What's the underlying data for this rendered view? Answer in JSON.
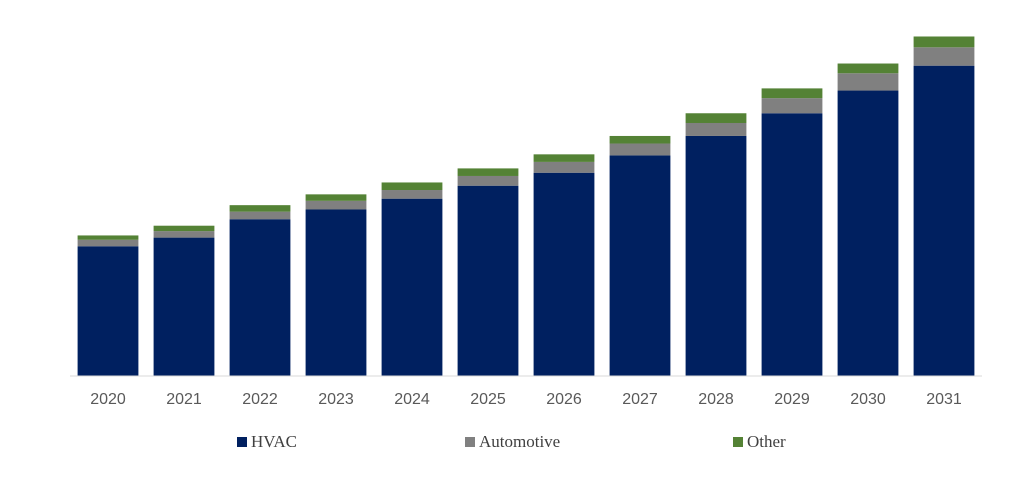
{
  "chart_data": {
    "type": "bar",
    "stacked": true,
    "categories": [
      "2020",
      "2021",
      "2022",
      "2023",
      "2024",
      "2025",
      "2026",
      "2027",
      "2028",
      "2029",
      "2030",
      "2031"
    ],
    "series": [
      {
        "name": "HVAC",
        "color": "#002060",
        "values": [
          120,
          128,
          145,
          154,
          164,
          176,
          188,
          204,
          222,
          243,
          264,
          287
        ]
      },
      {
        "name": "Automotive",
        "color": "#808080",
        "values": [
          6,
          6,
          7,
          8,
          8,
          9,
          10,
          11,
          12,
          14,
          16,
          17
        ]
      },
      {
        "name": "Other",
        "color": "#548235",
        "values": [
          4,
          5,
          6,
          6,
          7,
          7,
          7,
          7,
          9,
          9,
          9,
          10
        ]
      }
    ],
    "ylim": [
      0,
      320
    ],
    "grid": false,
    "legend_position": "bottom",
    "title": "",
    "xlabel": "",
    "ylabel": ""
  }
}
